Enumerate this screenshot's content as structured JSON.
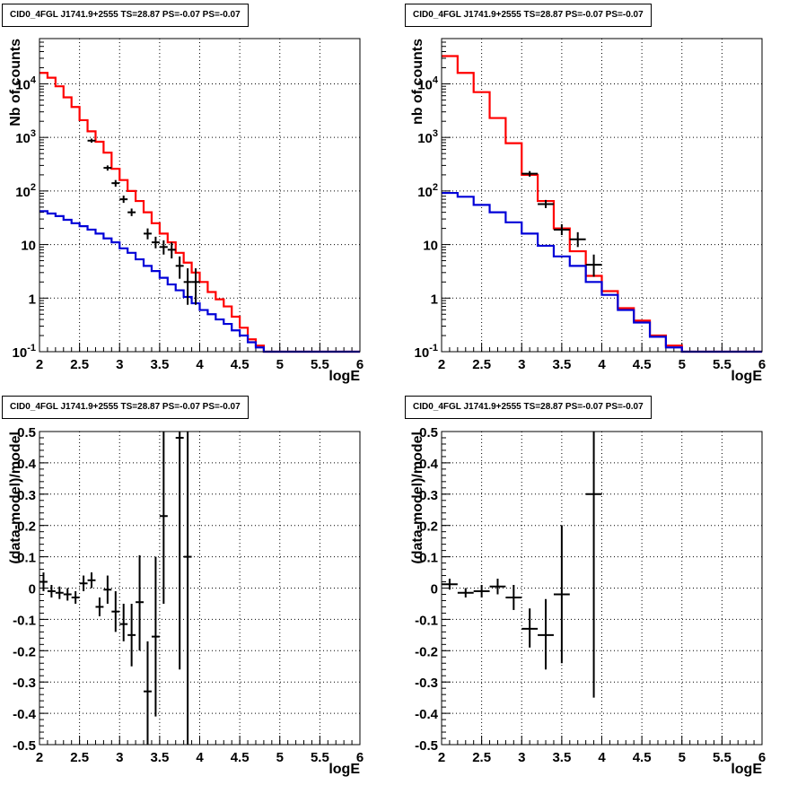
{
  "chart_data": [
    {
      "type": "line",
      "title": "CID0_4FGL J1741.9+2555 TS=28.87 PS=-0.07 PS=-0.07",
      "xlabel": "logE",
      "ylabel": "Nb of counts",
      "xlim": [
        2,
        6
      ],
      "ylim": [
        0.1,
        70000
      ],
      "yscale": "log",
      "grid": true,
      "xticks": [
        "2",
        "2.5",
        "3",
        "3.5",
        "4",
        "4.5",
        "5",
        "5.5",
        "6"
      ],
      "yticks": [
        "10^-1",
        "1",
        "10",
        "10^2",
        "10^3",
        "10^4"
      ],
      "series": [
        {
          "color": "#ff0000",
          "kind": "step",
          "bin_edges": [
            2.0,
            2.1,
            2.2,
            2.3,
            2.4,
            2.5,
            2.6,
            2.7,
            2.8,
            2.9,
            3.0,
            3.1,
            3.2,
            3.3,
            3.4,
            3.5,
            3.6,
            3.7,
            3.8,
            3.9,
            4.0,
            4.1,
            4.2,
            4.3,
            4.4,
            4.5,
            4.6,
            4.7,
            4.8,
            4.9,
            5.0,
            5.1,
            5.2,
            5.3,
            5.4,
            5.5,
            5.6,
            5.7,
            5.8,
            5.9,
            6.0
          ],
          "values": [
            16000,
            13000,
            9000,
            5600,
            3700,
            2100,
            1300,
            830,
            520,
            260,
            160,
            100,
            65,
            40,
            25,
            16,
            11,
            7,
            4.6,
            3,
            2,
            1.3,
            0.95,
            0.7,
            0.45,
            0.28,
            0.17,
            0.13,
            0.1,
            0.1,
            0.1,
            0.1,
            0.1,
            0.1,
            0.1,
            0.1,
            0.1,
            0.1,
            0.1,
            0.1
          ]
        },
        {
          "color": "#0000d8",
          "kind": "step",
          "bin_edges": [
            2.0,
            2.1,
            2.2,
            2.3,
            2.4,
            2.5,
            2.6,
            2.7,
            2.8,
            2.9,
            3.0,
            3.1,
            3.2,
            3.3,
            3.4,
            3.5,
            3.6,
            3.7,
            3.8,
            3.9,
            4.0,
            4.1,
            4.2,
            4.3,
            4.4,
            4.5,
            4.6,
            4.7,
            4.8,
            4.9,
            5.0,
            5.1,
            5.2,
            5.3,
            5.4,
            5.5,
            5.6,
            5.7,
            5.8,
            5.9,
            6.0
          ],
          "values": [
            42,
            38,
            34,
            29,
            25,
            22,
            19,
            16,
            13,
            11,
            8.5,
            7,
            5.3,
            4,
            3.2,
            2.4,
            1.8,
            1.4,
            1.05,
            0.8,
            0.6,
            0.5,
            0.4,
            0.33,
            0.25,
            0.2,
            0.15,
            0.12,
            0.1,
            0.1,
            0.1,
            0.1,
            0.1,
            0.1,
            0.1,
            0.1,
            0.1,
            0.1,
            0.1,
            0.1
          ]
        }
      ],
      "points": [
        {
          "x": 2.65,
          "xerr": 0.05,
          "y": 870,
          "ylo": 800,
          "yhi": 950
        },
        {
          "x": 2.85,
          "xerr": 0.05,
          "y": 270,
          "ylo": 240,
          "yhi": 300
        },
        {
          "x": 2.95,
          "xerr": 0.05,
          "y": 140,
          "ylo": 120,
          "yhi": 160
        },
        {
          "x": 3.05,
          "xerr": 0.05,
          "y": 70,
          "ylo": 60,
          "yhi": 82
        },
        {
          "x": 3.15,
          "xerr": 0.05,
          "y": 40,
          "ylo": 34,
          "yhi": 47
        },
        {
          "x": 3.35,
          "xerr": 0.05,
          "y": 16,
          "ylo": 12.5,
          "yhi": 20
        },
        {
          "x": 3.45,
          "xerr": 0.05,
          "y": 11,
          "ylo": 8.5,
          "yhi": 14
        },
        {
          "x": 3.55,
          "xerr": 0.05,
          "y": 9,
          "ylo": 6.5,
          "yhi": 12
        },
        {
          "x": 3.65,
          "xerr": 0.05,
          "y": 8,
          "ylo": 5.5,
          "yhi": 11
        },
        {
          "x": 3.75,
          "xerr": 0.05,
          "y": 4,
          "ylo": 2.3,
          "yhi": 6
        },
        {
          "x": 3.85,
          "xerr": 0.05,
          "y": 2,
          "ylo": 0.75,
          "yhi": 3.6
        },
        {
          "x": 3.95,
          "xerr": 0.05,
          "y": 2,
          "ylo": 0.75,
          "yhi": 3.6
        }
      ]
    },
    {
      "type": "line",
      "title": "CID0_4FGL J1741.9+2555 TS=28.87 PS=-0.07 PS=-0.07",
      "xlabel": "logE",
      "ylabel": "nb of counts",
      "xlim": [
        2,
        6
      ],
      "ylim": [
        0.1,
        70000
      ],
      "yscale": "log",
      "grid": true,
      "xticks": [
        "2",
        "2.5",
        "3",
        "3.5",
        "4",
        "4.5",
        "5",
        "5.5",
        "6"
      ],
      "yticks": [
        "10^-1",
        "1",
        "10",
        "10^2",
        "10^3",
        "10^4"
      ],
      "series": [
        {
          "color": "#ff0000",
          "kind": "step",
          "bin_edges": [
            2.0,
            2.2,
            2.4,
            2.6,
            2.8,
            3.0,
            3.2,
            3.4,
            3.6,
            3.8,
            4.0,
            4.2,
            4.4,
            4.6,
            4.8,
            5.0,
            5.2,
            5.4,
            5.6,
            5.8,
            6.0
          ],
          "values": [
            33000,
            16000,
            7000,
            2300,
            780,
            200,
            65,
            20,
            7.5,
            2.6,
            1.35,
            0.65,
            0.38,
            0.2,
            0.13,
            0.1,
            0.1,
            0.1,
            0.1,
            0.1
          ]
        },
        {
          "color": "#0000d8",
          "kind": "step",
          "bin_edges": [
            2.0,
            2.2,
            2.4,
            2.6,
            2.8,
            3.0,
            3.2,
            3.4,
            3.6,
            3.8,
            4.0,
            4.2,
            4.4,
            4.6,
            4.8,
            5.0,
            5.2,
            5.4,
            5.6,
            5.8,
            6.0
          ],
          "values": [
            92,
            78,
            55,
            40,
            26,
            16,
            9.5,
            6,
            4,
            2,
            1.15,
            0.6,
            0.35,
            0.19,
            0.12,
            0.1,
            0.1,
            0.1,
            0.1,
            0.1
          ]
        }
      ],
      "points": [
        {
          "x": 3.1,
          "xerr": 0.1,
          "y": 210,
          "ylo": 185,
          "yhi": 235
        },
        {
          "x": 3.3,
          "xerr": 0.1,
          "y": 57,
          "ylo": 48,
          "yhi": 68
        },
        {
          "x": 3.5,
          "xerr": 0.1,
          "y": 19,
          "ylo": 15,
          "yhi": 24
        },
        {
          "x": 3.7,
          "xerr": 0.1,
          "y": 12.5,
          "ylo": 9,
          "yhi": 17
        },
        {
          "x": 3.9,
          "xerr": 0.1,
          "y": 4.2,
          "ylo": 2.5,
          "yhi": 6.5
        }
      ]
    },
    {
      "type": "scatter",
      "title": "CID0_4FGL J1741.9+2555 TS=28.87 PS=-0.07 PS=-0.07",
      "xlabel": "logE",
      "ylabel": "(data-model)/model",
      "xlim": [
        2,
        6
      ],
      "ylim": [
        -0.5,
        0.5
      ],
      "grid": true,
      "xticks": [
        "2",
        "2.5",
        "3",
        "3.5",
        "4",
        "4.5",
        "5",
        "5.5",
        "6"
      ],
      "yticks": [
        "-0.5",
        "-0.4",
        "-0.3",
        "-0.2",
        "-0.1",
        "0",
        "0.1",
        "0.2",
        "0.3",
        "0.4",
        "0.5"
      ],
      "points": [
        {
          "x": 2.05,
          "xerr": 0.05,
          "y": 0.02,
          "ylo": -0.01,
          "yhi": 0.05
        },
        {
          "x": 2.15,
          "xerr": 0.05,
          "y": -0.01,
          "ylo": -0.03,
          "yhi": 0.01
        },
        {
          "x": 2.25,
          "xerr": 0.05,
          "y": -0.015,
          "ylo": -0.035,
          "yhi": 0.005
        },
        {
          "x": 2.35,
          "xerr": 0.05,
          "y": -0.02,
          "ylo": -0.04,
          "yhi": 0.0
        },
        {
          "x": 2.45,
          "xerr": 0.05,
          "y": -0.03,
          "ylo": -0.05,
          "yhi": -0.01
        },
        {
          "x": 2.55,
          "xerr": 0.05,
          "y": 0.015,
          "ylo": -0.01,
          "yhi": 0.04
        },
        {
          "x": 2.65,
          "xerr": 0.05,
          "y": 0.025,
          "ylo": 0.0,
          "yhi": 0.05
        },
        {
          "x": 2.75,
          "xerr": 0.05,
          "y": -0.06,
          "ylo": -0.09,
          "yhi": -0.03
        },
        {
          "x": 2.85,
          "xerr": 0.05,
          "y": -0.005,
          "ylo": -0.05,
          "yhi": 0.04
        },
        {
          "x": 2.95,
          "xerr": 0.05,
          "y": -0.075,
          "ylo": -0.14,
          "yhi": -0.01
        },
        {
          "x": 3.05,
          "xerr": 0.05,
          "y": -0.115,
          "ylo": -0.17,
          "yhi": -0.05
        },
        {
          "x": 3.15,
          "xerr": 0.05,
          "y": -0.15,
          "ylo": -0.25,
          "yhi": -0.05
        },
        {
          "x": 3.25,
          "xerr": 0.05,
          "y": -0.045,
          "ylo": -0.2,
          "yhi": 0.105
        },
        {
          "x": 3.35,
          "xerr": 0.05,
          "y": -0.33,
          "ylo": -0.5,
          "yhi": -0.17
        },
        {
          "x": 3.45,
          "xerr": 0.05,
          "y": -0.155,
          "ylo": -0.41,
          "yhi": 0.1
        },
        {
          "x": 3.55,
          "xerr": 0.05,
          "y": 0.23,
          "ylo": -0.05,
          "yhi": 0.5
        },
        {
          "x": 3.75,
          "xerr": 0.05,
          "y": 0.48,
          "ylo": -0.26,
          "yhi": 0.5
        },
        {
          "x": 3.85,
          "xerr": 0.05,
          "y": 0.1,
          "ylo": -0.5,
          "yhi": 0.5
        }
      ]
    },
    {
      "type": "scatter",
      "title": "CID0_4FGL J1741.9+2555 TS=28.87 PS=-0.07 PS=-0.07",
      "xlabel": "logE",
      "ylabel": "(data-model)/model",
      "xlim": [
        2,
        6
      ],
      "ylim": [
        -0.5,
        0.5
      ],
      "grid": true,
      "xticks": [
        "2",
        "2.5",
        "3",
        "3.5",
        "4",
        "4.5",
        "5",
        "5.5",
        "6"
      ],
      "yticks": [
        "-0.5",
        "-0.4",
        "-0.3",
        "-0.2",
        "-0.1",
        "0",
        "0.1",
        "0.2",
        "0.3",
        "0.4",
        "0.5"
      ],
      "points": [
        {
          "x": 2.1,
          "xerr": 0.1,
          "y": 0.012,
          "ylo": -0.005,
          "yhi": 0.03
        },
        {
          "x": 2.3,
          "xerr": 0.1,
          "y": -0.015,
          "ylo": -0.03,
          "yhi": 0.0
        },
        {
          "x": 2.5,
          "xerr": 0.1,
          "y": -0.01,
          "ylo": -0.03,
          "yhi": 0.01
        },
        {
          "x": 2.7,
          "xerr": 0.1,
          "y": 0.005,
          "ylo": -0.02,
          "yhi": 0.03
        },
        {
          "x": 2.9,
          "xerr": 0.1,
          "y": -0.03,
          "ylo": -0.07,
          "yhi": 0.01
        },
        {
          "x": 3.1,
          "xerr": 0.1,
          "y": -0.13,
          "ylo": -0.19,
          "yhi": -0.065
        },
        {
          "x": 3.3,
          "xerr": 0.1,
          "y": -0.15,
          "ylo": -0.26,
          "yhi": -0.035
        },
        {
          "x": 3.5,
          "xerr": 0.1,
          "y": -0.02,
          "ylo": -0.24,
          "yhi": 0.2
        },
        {
          "x": 3.9,
          "xerr": 0.1,
          "y": 0.3,
          "ylo": -0.35,
          "yhi": 0.5
        }
      ]
    }
  ]
}
